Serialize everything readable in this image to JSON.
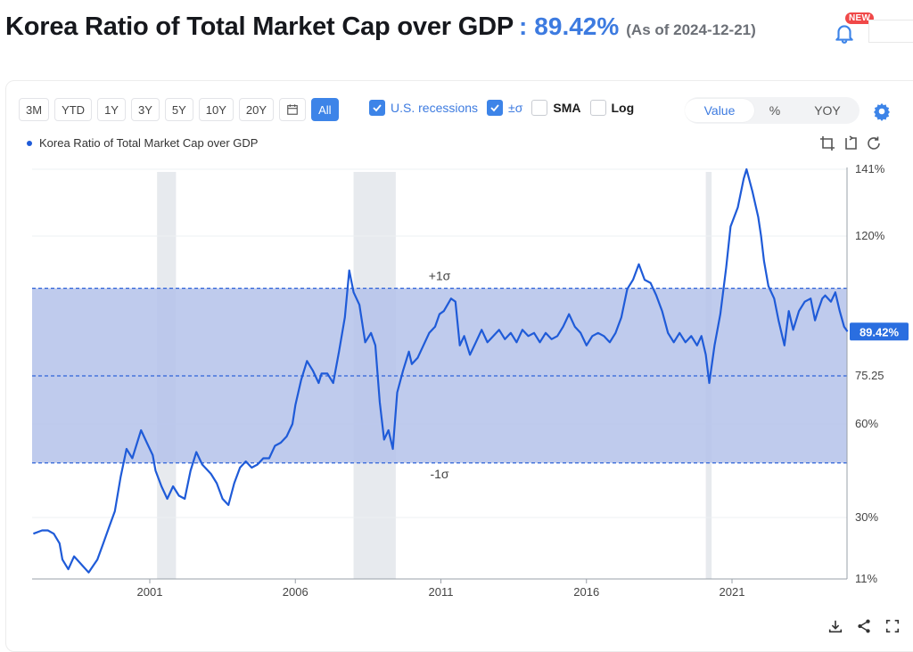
{
  "header": {
    "title": "Korea Ratio of Total Market Cap over GDP",
    "separator": ":",
    "value": "89.42%",
    "as_of": "(As of 2024-12-21)",
    "new_badge": "NEW"
  },
  "range_buttons": [
    "3M",
    "YTD",
    "1Y",
    "3Y",
    "5Y",
    "10Y",
    "20Y",
    "All"
  ],
  "active_range": "All",
  "toggles": {
    "recessions": "U.S. recessions",
    "sigma": "±σ",
    "sma": "SMA",
    "log": "Log"
  },
  "view_modes": [
    "Value",
    "%",
    "YOY"
  ],
  "active_view_mode": "Value",
  "legend_label": "Korea Ratio of Total Market Cap over GDP",
  "colors": {
    "accent": "#3d84e8",
    "line": "#1f5bd8",
    "band": "#b4c2ea",
    "recession": "#e7eaee"
  },
  "chart_data": {
    "type": "line",
    "title": "Korea Ratio of Total Market Cap over GDP",
    "x_tick_labels": [
      "2001",
      "2006",
      "2011",
      "2016",
      "2021"
    ],
    "y_tick_labels": [
      "141%",
      "120%",
      "75.25",
      "60%",
      "30%",
      "11%"
    ],
    "y_tick_values": [
      141,
      120,
      75.25,
      60,
      30,
      11
    ],
    "xlim": [
      1997.0,
      2024.97
    ],
    "ylim": [
      11,
      141
    ],
    "mean": 75.25,
    "sigma_upper": 103.3,
    "sigma_lower": 47.5,
    "sigma_labels": {
      "upper": "+1σ",
      "lower": "-1σ"
    },
    "last_value_label": "89.42%",
    "recessions": [
      [
        2001.25,
        2001.9
      ],
      [
        2008.0,
        2009.45
      ],
      [
        2020.1,
        2020.3
      ]
    ],
    "series": [
      {
        "values": [
          [
            1997.0,
            25
          ],
          [
            1997.3,
            26
          ],
          [
            1997.5,
            26
          ],
          [
            1997.7,
            25
          ],
          [
            1997.9,
            22
          ],
          [
            1998.0,
            17
          ],
          [
            1998.2,
            14
          ],
          [
            1998.4,
            18
          ],
          [
            1998.7,
            15
          ],
          [
            1998.9,
            13
          ],
          [
            1999.2,
            17
          ],
          [
            1999.4,
            22
          ],
          [
            1999.6,
            27
          ],
          [
            1999.8,
            32
          ],
          [
            2000.0,
            43
          ],
          [
            2000.2,
            52
          ],
          [
            2000.4,
            49
          ],
          [
            2000.7,
            58
          ],
          [
            2000.9,
            54
          ],
          [
            2001.1,
            50
          ],
          [
            2001.2,
            45
          ],
          [
            2001.4,
            40
          ],
          [
            2001.6,
            36
          ],
          [
            2001.8,
            40
          ],
          [
            2002.0,
            37
          ],
          [
            2002.2,
            36
          ],
          [
            2002.4,
            45
          ],
          [
            2002.6,
            51
          ],
          [
            2002.8,
            47
          ],
          [
            2003.1,
            44
          ],
          [
            2003.3,
            41
          ],
          [
            2003.5,
            36
          ],
          [
            2003.7,
            34
          ],
          [
            2003.9,
            41
          ],
          [
            2004.1,
            46
          ],
          [
            2004.3,
            48
          ],
          [
            2004.5,
            46
          ],
          [
            2004.7,
            47
          ],
          [
            2004.9,
            49
          ],
          [
            2005.1,
            49
          ],
          [
            2005.3,
            53
          ],
          [
            2005.5,
            54
          ],
          [
            2005.7,
            56
          ],
          [
            2005.9,
            60
          ],
          [
            2006.0,
            66
          ],
          [
            2006.2,
            74
          ],
          [
            2006.4,
            80
          ],
          [
            2006.6,
            77
          ],
          [
            2006.8,
            73
          ],
          [
            2006.9,
            76
          ],
          [
            2007.1,
            76
          ],
          [
            2007.3,
            73
          ],
          [
            2007.5,
            83
          ],
          [
            2007.7,
            94
          ],
          [
            2007.85,
            109
          ],
          [
            2008.0,
            102
          ],
          [
            2008.2,
            98
          ],
          [
            2008.4,
            86
          ],
          [
            2008.6,
            89
          ],
          [
            2008.75,
            85
          ],
          [
            2008.9,
            67
          ],
          [
            2009.05,
            55
          ],
          [
            2009.2,
            58
          ],
          [
            2009.35,
            52
          ],
          [
            2009.5,
            70
          ],
          [
            2009.7,
            77
          ],
          [
            2009.9,
            83
          ],
          [
            2010.0,
            79
          ],
          [
            2010.2,
            81
          ],
          [
            2010.4,
            85
          ],
          [
            2010.6,
            89
          ],
          [
            2010.8,
            91
          ],
          [
            2010.95,
            95
          ],
          [
            2011.1,
            96
          ],
          [
            2011.35,
            100
          ],
          [
            2011.5,
            99
          ],
          [
            2011.65,
            85
          ],
          [
            2011.8,
            88
          ],
          [
            2012.0,
            82
          ],
          [
            2012.2,
            86
          ],
          [
            2012.4,
            90
          ],
          [
            2012.6,
            86
          ],
          [
            2012.8,
            88
          ],
          [
            2013.0,
            90
          ],
          [
            2013.2,
            87
          ],
          [
            2013.4,
            89
          ],
          [
            2013.6,
            86
          ],
          [
            2013.8,
            90
          ],
          [
            2014.0,
            88
          ],
          [
            2014.2,
            89
          ],
          [
            2014.4,
            86
          ],
          [
            2014.6,
            89
          ],
          [
            2014.8,
            87
          ],
          [
            2015.0,
            88
          ],
          [
            2015.2,
            91
          ],
          [
            2015.4,
            95
          ],
          [
            2015.6,
            91
          ],
          [
            2015.8,
            89
          ],
          [
            2016.0,
            85
          ],
          [
            2016.2,
            88
          ],
          [
            2016.4,
            89
          ],
          [
            2016.6,
            88
          ],
          [
            2016.8,
            86
          ],
          [
            2017.0,
            89
          ],
          [
            2017.2,
            94
          ],
          [
            2017.4,
            103
          ],
          [
            2017.6,
            106
          ],
          [
            2017.8,
            111
          ],
          [
            2018.0,
            106
          ],
          [
            2018.2,
            105
          ],
          [
            2018.4,
            101
          ],
          [
            2018.6,
            96
          ],
          [
            2018.8,
            89
          ],
          [
            2019.0,
            86
          ],
          [
            2019.2,
            89
          ],
          [
            2019.4,
            86
          ],
          [
            2019.6,
            88
          ],
          [
            2019.8,
            85
          ],
          [
            2019.95,
            88
          ],
          [
            2020.1,
            82
          ],
          [
            2020.22,
            73
          ],
          [
            2020.4,
            85
          ],
          [
            2020.6,
            95
          ],
          [
            2020.8,
            110
          ],
          [
            2020.95,
            123
          ],
          [
            2021.2,
            129
          ],
          [
            2021.4,
            138
          ],
          [
            2021.5,
            141
          ],
          [
            2021.7,
            134
          ],
          [
            2021.9,
            126
          ],
          [
            2022.0,
            120
          ],
          [
            2022.1,
            112
          ],
          [
            2022.25,
            104
          ],
          [
            2022.45,
            100
          ],
          [
            2022.6,
            93
          ],
          [
            2022.8,
            85
          ],
          [
            2022.95,
            96
          ],
          [
            2023.1,
            90
          ],
          [
            2023.3,
            96
          ],
          [
            2023.5,
            99
          ],
          [
            2023.7,
            100
          ],
          [
            2023.85,
            93
          ],
          [
            2023.95,
            96
          ],
          [
            2024.1,
            100
          ],
          [
            2024.2,
            101
          ],
          [
            2024.4,
            99
          ],
          [
            2024.55,
            102
          ],
          [
            2024.7,
            96
          ],
          [
            2024.85,
            91
          ],
          [
            2024.97,
            89.42
          ]
        ]
      }
    ]
  }
}
